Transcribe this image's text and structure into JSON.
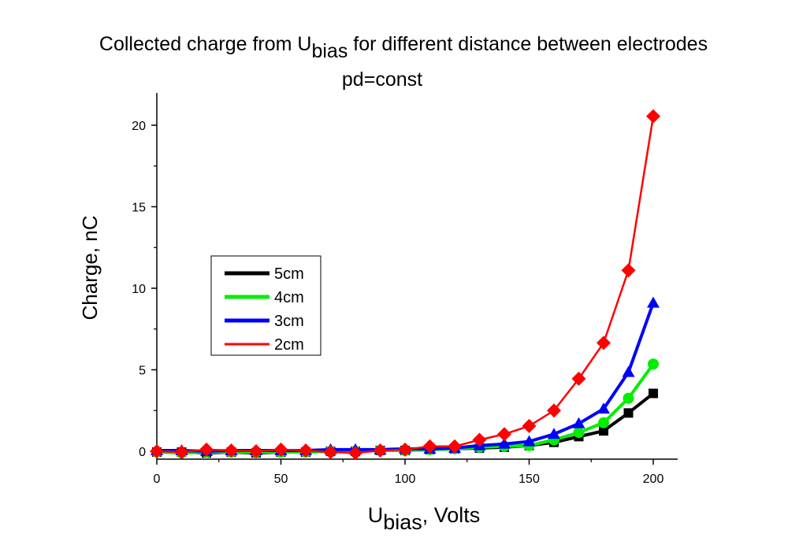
{
  "chart_data": {
    "type": "line",
    "title_prefix": "Collected charge from U",
    "title_sub": "bias",
    "title_suffix": " for different distance between electrodes",
    "subtitle": "pd=const",
    "xlabel_prefix": "U",
    "xlabel_sub": "bias",
    "xlabel_suffix": ", Volts",
    "ylabel": "Charge, nC",
    "xlim": [
      0,
      210
    ],
    "ylim": [
      -0.5,
      22
    ],
    "xticks": [
      0,
      50,
      100,
      150,
      200
    ],
    "yticks": [
      0,
      5,
      10,
      15,
      20
    ],
    "legend_position": "middle-left",
    "x": [
      0,
      10,
      20,
      30,
      40,
      50,
      60,
      70,
      80,
      90,
      100,
      110,
      120,
      130,
      140,
      150,
      160,
      170,
      180,
      190,
      200
    ],
    "series": [
      {
        "name": "5cm",
        "color": "#000000",
        "marker": "square",
        "values": [
          -0.05,
          -0.05,
          -0.1,
          -0.05,
          -0.1,
          -0.05,
          -0.05,
          0.0,
          0.0,
          0.05,
          0.05,
          0.1,
          0.15,
          0.2,
          0.25,
          0.35,
          0.55,
          0.9,
          1.25,
          2.35,
          3.55
        ]
      },
      {
        "name": "4cm",
        "color": "#00ee00",
        "marker": "circle",
        "values": [
          -0.05,
          -0.1,
          -0.05,
          -0.05,
          -0.05,
          -0.05,
          -0.05,
          0.0,
          0.0,
          0.05,
          0.05,
          0.1,
          0.15,
          0.25,
          0.3,
          0.35,
          0.7,
          1.15,
          1.75,
          3.25,
          5.35
        ]
      },
      {
        "name": "3cm",
        "color": "#0000ff",
        "marker": "triangle",
        "values": [
          0.05,
          0.05,
          0.0,
          0.05,
          0.05,
          0.05,
          0.05,
          0.1,
          0.1,
          0.1,
          0.15,
          0.15,
          0.2,
          0.35,
          0.45,
          0.6,
          1.05,
          1.7,
          2.6,
          4.85,
          9.1
        ]
      },
      {
        "name": "2cm",
        "color": "#ff0000",
        "marker": "diamond",
        "values": [
          0.0,
          -0.05,
          0.1,
          0.05,
          0.0,
          0.1,
          0.05,
          -0.05,
          -0.1,
          0.05,
          0.1,
          0.3,
          0.3,
          0.7,
          1.05,
          1.55,
          2.5,
          4.45,
          6.65,
          11.1,
          20.55
        ]
      }
    ]
  }
}
